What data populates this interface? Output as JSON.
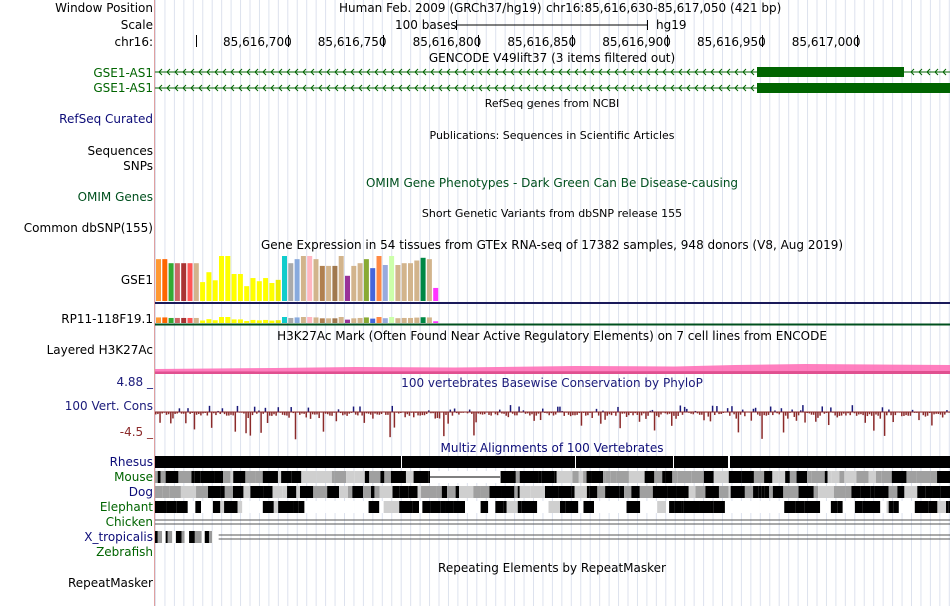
{
  "labels": {
    "window_position": "Window Position",
    "scale": "Scale",
    "chrom": "chr16:",
    "gencode_1": "GSE1-AS1",
    "gencode_2": "GSE1-AS1",
    "refseq": "RefSeq Curated",
    "sequences": "Sequences",
    "snps": "SNPs",
    "omim": "OMIM Genes",
    "dbsnp": "Common dbSNP(155)",
    "gse1": "GSE1",
    "rp11": "RP11-118F19.1",
    "h3k27ac": "Layered H3K27Ac",
    "cons_max": "4.88 _",
    "cons": "100 Vert. Cons",
    "cons_min": "-4.5 _"
  },
  "species": [
    "Rhesus",
    "Mouse",
    "Dog",
    "Elephant",
    "Chicken",
    "X_tropicalis",
    "Zebrafish"
  ],
  "repeat_label": "RepeatMasker",
  "header": {
    "assembly": "Human Feb. 2009 (GRCh37/hg19)",
    "position": "chr16:85,616,630-85,617,050 (421 bp)",
    "scale_text": "100 bases",
    "scale_db": "hg19"
  },
  "ruler_ticks": [
    "85,616,700",
    "85,616,750",
    "85,616,800",
    "85,616,850",
    "85,616,900",
    "85,616,950",
    "85,617,000"
  ],
  "track_titles": {
    "gencode": "GENCODE V49lift37 (3 items filtered out)",
    "refseq": "RefSeq genes from NCBI",
    "publications": "Publications: Sequences in Scientific Articles",
    "omim": "OMIM Gene Phenotypes - Dark Green Can Be Disease-causing",
    "dbsnp": "Short Genetic Variants from dbSNP release 155",
    "gtex": "Gene Expression in 54 tissues from GTEx RNA-seq of 17382 samples, 948 donors (V8, Aug 2019)",
    "h3k27ac": "H3K27Ac Mark (Often Found Near Active Regulatory Elements) on 7 cell lines from ENCODE",
    "phylop": "100 vertebrates Basewise Conservation by PhyloP",
    "multiz": "Multiz Alignments of 100 Vertebrates",
    "repeatmasker": "Repeating Elements by RepeatMasker"
  },
  "colors": {
    "gencode_green": "#006400",
    "refseq_blue": "#0c0c78",
    "omim_green": "#00501e",
    "species_blue": "#0c0c78",
    "species_green": "#006400",
    "phylop_blue": "#1a1a7a",
    "phylop_red": "#8b2a2a",
    "h3k27ac_pink": "#ff69b4"
  },
  "gtex_bars": [
    {
      "color": "#ff9933",
      "level": 0.93
    },
    {
      "color": "#ff6600",
      "level": 0.93
    },
    {
      "color": "#33aa33",
      "level": 0.84
    },
    {
      "color": "#cc6666",
      "level": 0.84
    },
    {
      "color": "#aa3333",
      "level": 0.84
    },
    {
      "color": "#ff5555",
      "level": 0.84
    },
    {
      "color": "#d2b48c",
      "level": 0.84
    },
    {
      "color": "#ffff00",
      "level": 0.42
    },
    {
      "color": "#ffff00",
      "level": 0.64
    },
    {
      "color": "#ffff00",
      "level": 0.46
    },
    {
      "color": "#ffff00",
      "level": 1.0
    },
    {
      "color": "#ffff00",
      "level": 1.0
    },
    {
      "color": "#ffff00",
      "level": 0.6
    },
    {
      "color": "#ffff00",
      "level": 0.6
    },
    {
      "color": "#ffff00",
      "level": 0.33
    },
    {
      "color": "#ffff00",
      "level": 0.51
    },
    {
      "color": "#ffff00",
      "level": 0.44
    },
    {
      "color": "#ffff00",
      "level": 0.51
    },
    {
      "color": "#ffff00",
      "level": 0.4
    },
    {
      "color": "#eeee00",
      "level": 0.47
    },
    {
      "color": "#11cccc",
      "level": 1.0
    },
    {
      "color": "#aaaaaa",
      "level": 0.84
    },
    {
      "color": "#88aadd",
      "level": 0.93
    },
    {
      "color": "#d2b48c",
      "level": 1.0
    },
    {
      "color": "#ffb6c1",
      "level": 1.0
    },
    {
      "color": "#d2b48c",
      "level": 0.93
    },
    {
      "color": "#b08050",
      "level": 0.78
    },
    {
      "color": "#d2b48c",
      "level": 0.78
    },
    {
      "color": "#a0784e",
      "level": 0.78
    },
    {
      "color": "#d2b48c",
      "level": 1.0
    },
    {
      "color": "#993399",
      "level": 0.56
    },
    {
      "color": "#d2b48c",
      "level": 0.78
    },
    {
      "color": "#d2b48c",
      "level": 0.84
    },
    {
      "color": "#88aa33",
      "level": 0.93
    },
    {
      "color": "#4466dd",
      "level": 0.73
    },
    {
      "color": "#ff8844",
      "level": 1.0
    },
    {
      "color": "#99aadd",
      "level": 0.8
    },
    {
      "color": "#ccffaa",
      "level": 1.0
    },
    {
      "color": "#d2b48c",
      "level": 0.8
    },
    {
      "color": "#d2b48c",
      "level": 0.84
    },
    {
      "color": "#d2b48c",
      "level": 0.84
    },
    {
      "color": "#d2b48c",
      "level": 0.9
    },
    {
      "color": "#008844",
      "level": 0.96
    },
    {
      "color": "#d2b48c",
      "level": 0.93
    },
    {
      "color": "#ff33ff",
      "level": 0.29
    }
  ]
}
